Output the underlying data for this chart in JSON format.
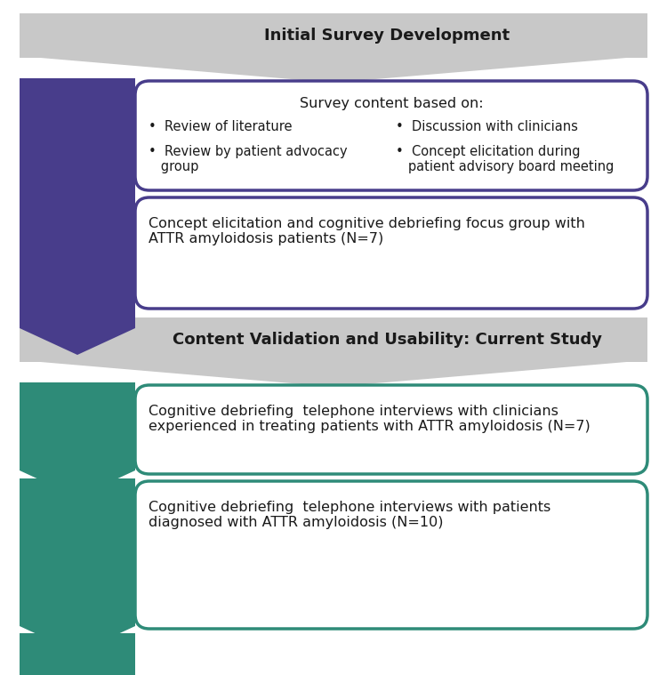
{
  "bg_color": "#ffffff",
  "gray_color": "#c8c8c8",
  "purple_color": "#483d8b",
  "teal_color": "#2e8b78",
  "box_fill": "#ffffff",
  "section1_title": "Initial Survey Development",
  "section2_title": "Content Validation and Usability: Current Study",
  "box1_title": "Survey content based on:",
  "box1_bl1": "•  Review of literature",
  "box1_bl2": "•  Review by patient advocacy\n   group",
  "box1_br1": "•  Discussion with clinicians",
  "box1_br2": "•  Concept elicitation during\n   patient advisory board meeting",
  "box2_text": "Concept elicitation and cognitive debriefing focus group with\nATTR amyloidosis patients (N=7)",
  "box3_text": "Cognitive debriefing  telephone interviews with clinicians\nexperienced in treating patients with ATTR amyloidosis (N=7)",
  "box4_text": "Cognitive debriefing  telephone interviews with patients\ndiagnosed with ATTR amyloidosis (N=10)",
  "text_color": "#1a1a1a"
}
